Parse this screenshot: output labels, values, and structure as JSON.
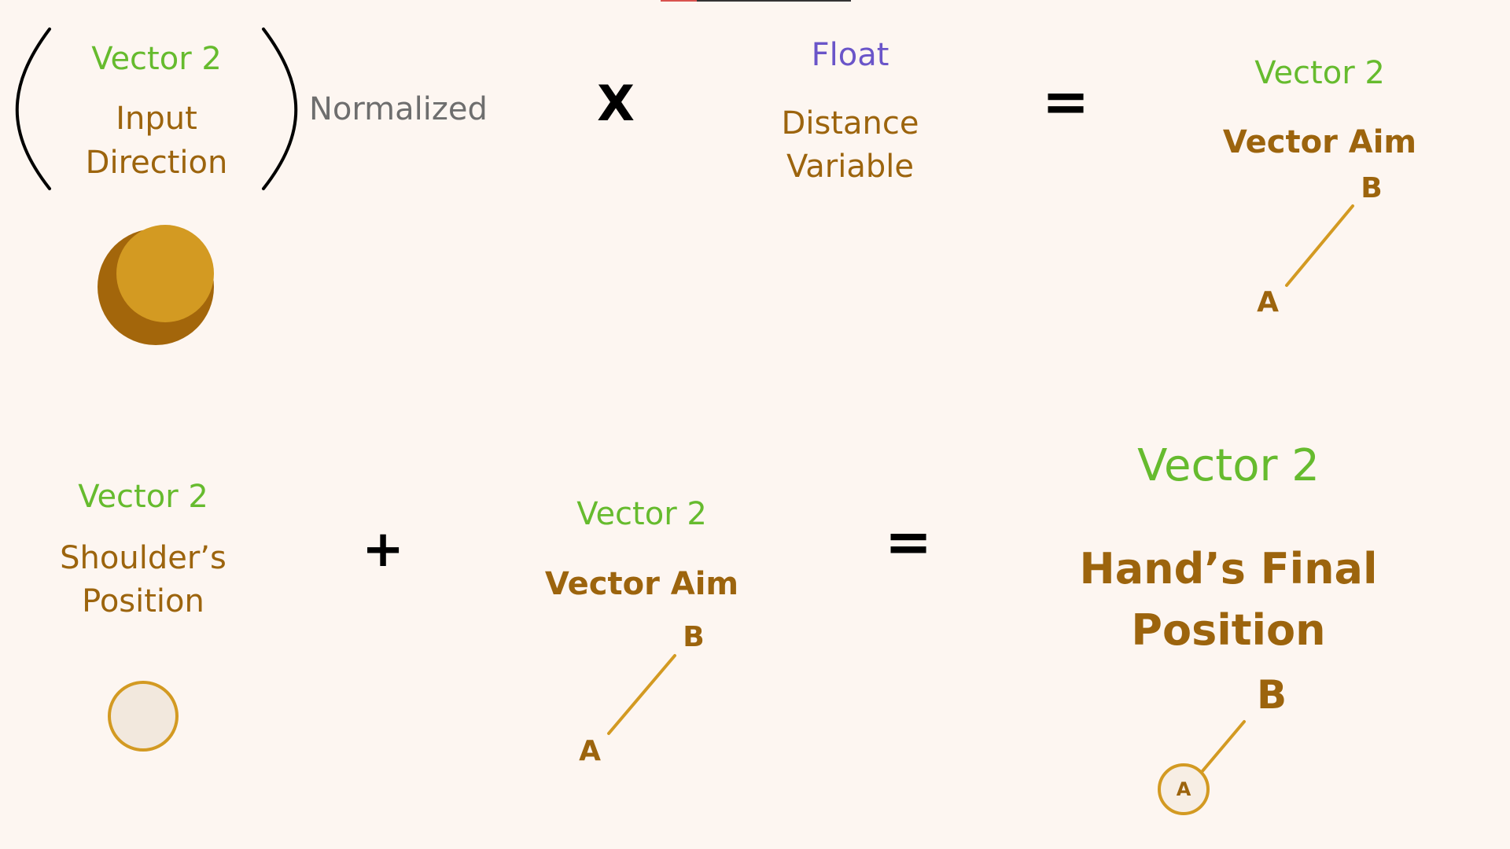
{
  "top_left": {
    "type_label": "Vector 2",
    "name_line1": "Input",
    "name_line2": "Direction",
    "modifier": "Normalized"
  },
  "operators": {
    "multiply": "X",
    "equals": "=",
    "plus": "+"
  },
  "float_term": {
    "type_label": "Float",
    "name_line1": "Distance",
    "name_line2": "Variable"
  },
  "vector_aim_top": {
    "type_label": "Vector 2",
    "name": "Vector Aim",
    "point_a": "A",
    "point_b": "B"
  },
  "shoulder_term": {
    "type_label": "Vector 2",
    "name_line1": "Shoulder’s",
    "name_line2": "Position"
  },
  "vector_aim_bottom": {
    "type_label": "Vector 2",
    "name": "Vector Aim",
    "point_a": "A",
    "point_b": "B"
  },
  "result": {
    "type_label": "Vector 2",
    "name_line1": "Hand’s Final",
    "name_line2": "Position",
    "point_a": "A",
    "point_b": "B"
  },
  "colors": {
    "background": "#fdf6f1",
    "type_green": "#66bb2e",
    "name_brown": "#9c640d",
    "float_purple": "#6a55c9",
    "accent_gold": "#d39a22"
  }
}
